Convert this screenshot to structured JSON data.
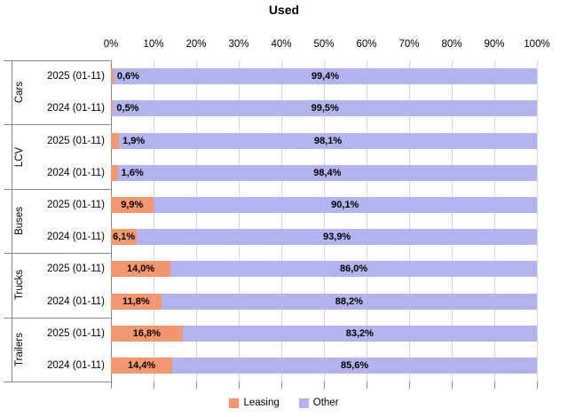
{
  "chart_data": {
    "type": "bar",
    "orientation": "horizontal-stacked",
    "title": "Used",
    "xlim": [
      0,
      100
    ],
    "grid": true,
    "x_tick_labels": [
      "0%",
      "10%",
      "20%",
      "30%",
      "40%",
      "50%",
      "60%",
      "70%",
      "80%",
      "90%",
      "100%"
    ],
    "legend_position": "bottom",
    "series": [
      {
        "name": "Leasing",
        "color": "#f5976e"
      },
      {
        "name": "Other",
        "color": "#b3b3ef"
      }
    ],
    "groups": [
      {
        "name": "Cars",
        "rows": [
          {
            "label": "2025 (01-11)",
            "leasing": 0.6,
            "other": 99.4,
            "leasing_label": "0,6%",
            "other_label": "99,4%"
          },
          {
            "label": "2024 (01-11)",
            "leasing": 0.5,
            "other": 99.5,
            "leasing_label": "0,5%",
            "other_label": "99,5%"
          }
        ]
      },
      {
        "name": "LCV",
        "rows": [
          {
            "label": "2025 (01-11)",
            "leasing": 1.9,
            "other": 98.1,
            "leasing_label": "1,9%",
            "other_label": "98,1%"
          },
          {
            "label": "2024 (01-11)",
            "leasing": 1.6,
            "other": 98.4,
            "leasing_label": "1,6%",
            "other_label": "98,4%"
          }
        ]
      },
      {
        "name": "Buses",
        "rows": [
          {
            "label": "2025 (01-11)",
            "leasing": 9.9,
            "other": 90.1,
            "leasing_label": "9,9%",
            "other_label": "90,1%"
          },
          {
            "label": "2024 (01-11)",
            "leasing": 6.1,
            "other": 93.9,
            "leasing_label": "6,1%",
            "other_label": "93,9%"
          }
        ]
      },
      {
        "name": "Trucks",
        "rows": [
          {
            "label": "2025 (01-11)",
            "leasing": 14.0,
            "other": 86.0,
            "leasing_label": "14,0%",
            "other_label": "86,0%"
          },
          {
            "label": "2024 (01-11)",
            "leasing": 11.8,
            "other": 88.2,
            "leasing_label": "11,8%",
            "other_label": "88,2%"
          }
        ]
      },
      {
        "name": "Trailers",
        "rows": [
          {
            "label": "2025 (01-11)",
            "leasing": 16.8,
            "other": 83.2,
            "leasing_label": "16,8%",
            "other_label": "83,2%"
          },
          {
            "label": "2024 (01-11)",
            "leasing": 14.4,
            "other": 85.6,
            "leasing_label": "14,4%",
            "other_label": "85,6%"
          }
        ]
      }
    ],
    "colors": {
      "gridline": "#d9d9d9",
      "axis": "#8a8a8a",
      "label_text": "#000000"
    }
  }
}
